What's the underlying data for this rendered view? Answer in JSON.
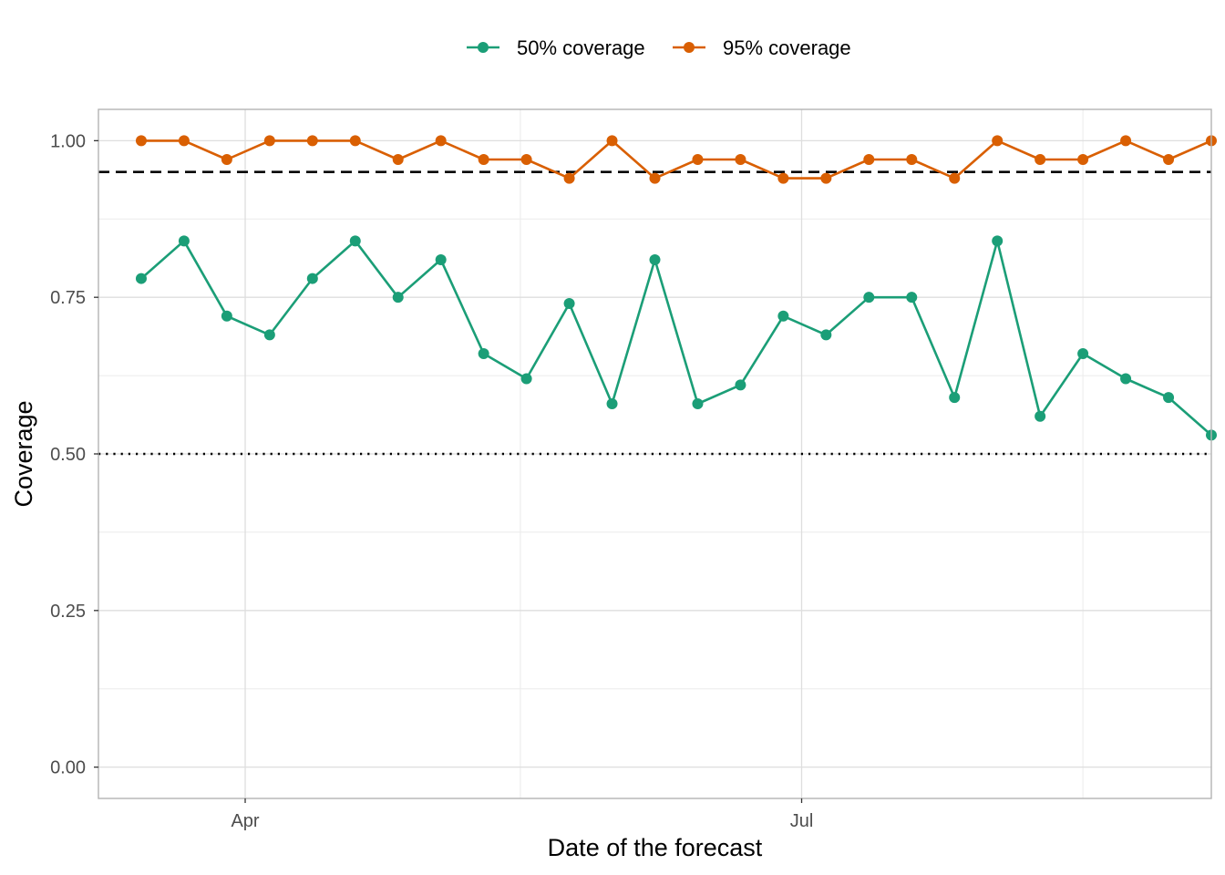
{
  "chart_data": {
    "type": "line",
    "xlabel": "Date of the forecast",
    "ylabel": "Coverage",
    "x_axis_type": "date",
    "xlim": [
      "2021-03-08",
      "2021-09-06"
    ],
    "ylim": [
      -0.05,
      1.05
    ],
    "x_ticks": [
      {
        "date": "2021-04-01",
        "label": "Apr"
      },
      {
        "date": "2021-07-01",
        "label": "Jul"
      }
    ],
    "x_minor_ticks": [
      "2021-05-16",
      "2021-08-16"
    ],
    "y_ticks": [
      {
        "value": 0.0,
        "label": "0.00"
      },
      {
        "value": 0.25,
        "label": "0.25"
      },
      {
        "value": 0.5,
        "label": "0.50"
      },
      {
        "value": 0.75,
        "label": "0.75"
      },
      {
        "value": 1.0,
        "label": "1.00"
      }
    ],
    "y_minor_ticks": [
      0.125,
      0.375,
      0.625,
      0.875
    ],
    "grid": true,
    "legend_position": "top",
    "x": [
      "2021-03-15",
      "2021-03-22",
      "2021-03-29",
      "2021-04-05",
      "2021-04-12",
      "2021-04-19",
      "2021-04-26",
      "2021-05-03",
      "2021-05-10",
      "2021-05-17",
      "2021-05-24",
      "2021-05-31",
      "2021-06-07",
      "2021-06-14",
      "2021-06-21",
      "2021-06-28",
      "2021-07-05",
      "2021-07-12",
      "2021-07-19",
      "2021-07-26",
      "2021-08-02",
      "2021-08-09",
      "2021-08-16",
      "2021-08-23",
      "2021-08-30",
      "2021-09-06"
    ],
    "series": [
      {
        "name": "50% coverage",
        "color": "#1b9e77",
        "values": [
          0.78,
          0.84,
          0.72,
          0.69,
          0.78,
          0.84,
          0.75,
          0.81,
          0.66,
          0.62,
          0.74,
          0.58,
          0.81,
          0.58,
          0.61,
          0.72,
          0.69,
          0.75,
          0.75,
          0.59,
          0.84,
          0.56,
          0.66,
          0.62,
          0.59,
          0.53
        ]
      },
      {
        "name": "95% coverage",
        "color": "#d95f02",
        "values": [
          1.0,
          1.0,
          0.97,
          1.0,
          1.0,
          1.0,
          0.97,
          1.0,
          0.97,
          0.97,
          0.94,
          1.0,
          0.94,
          0.97,
          0.97,
          0.94,
          0.94,
          0.97,
          0.97,
          0.94,
          1.0,
          0.97,
          0.97,
          1.0,
          0.97,
          1.0
        ]
      }
    ],
    "reference_lines": [
      {
        "value": 0.95,
        "style": "dashed",
        "color": "#000000"
      },
      {
        "value": 0.5,
        "style": "dotted",
        "color": "#000000"
      }
    ]
  }
}
